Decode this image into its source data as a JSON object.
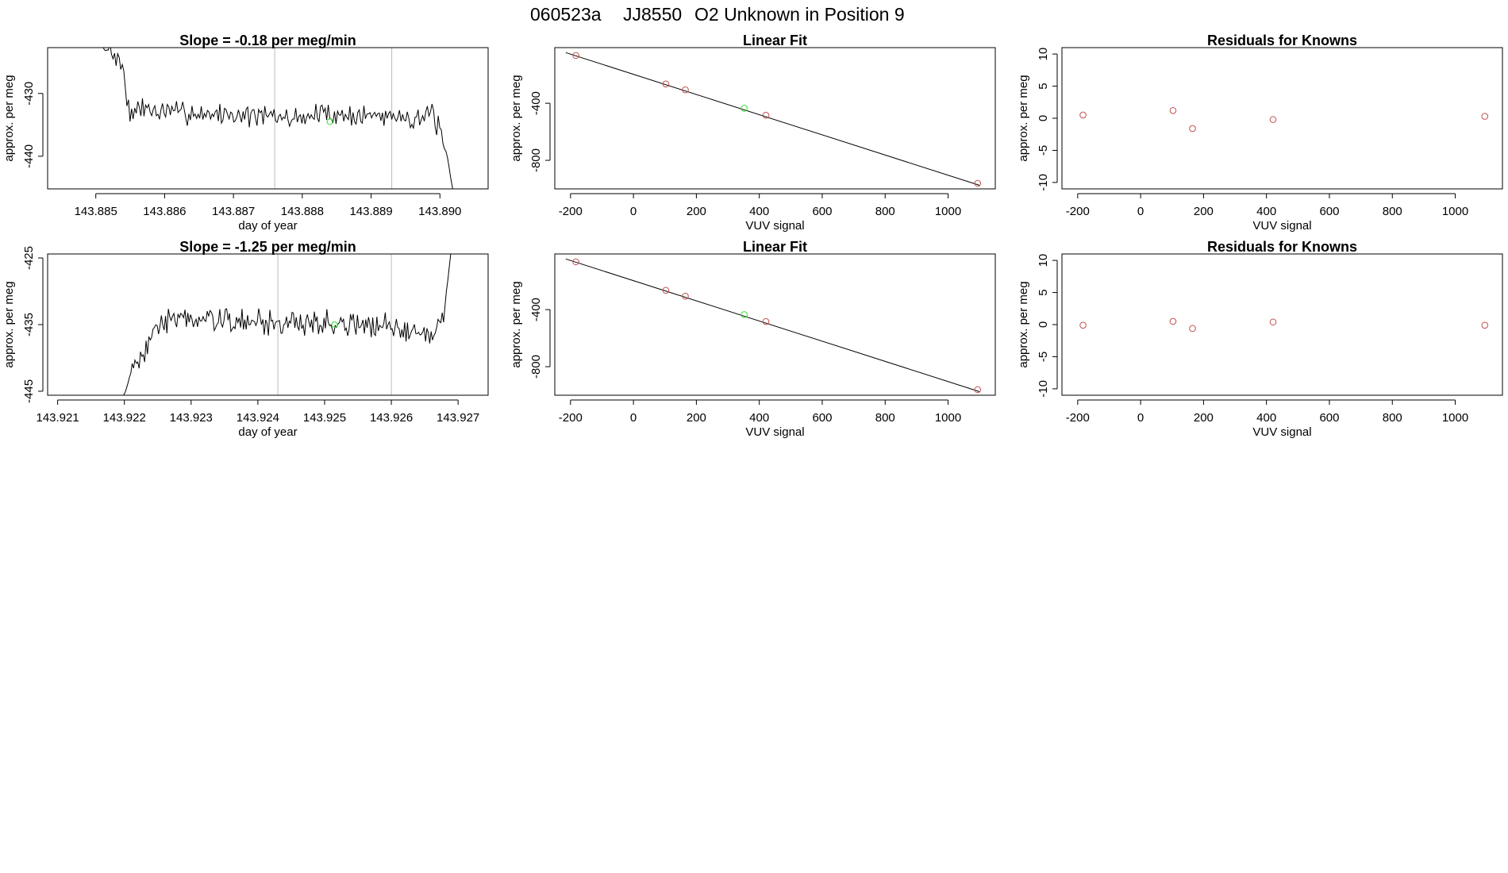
{
  "page_title": {
    "run": "060523a",
    "tank": "JJ8550",
    "description": "O2 Unknown in Position  9"
  },
  "colors": {
    "line": "#000000",
    "known_point": "#c0504d",
    "unknown_point": "#33dd33",
    "cursor_line": "#bbbbbb",
    "frame": "#000000"
  },
  "chart_data": [
    {
      "id": "ts1",
      "type": "line",
      "title": "Slope =  -0.18  per meg/min",
      "xlabel": "day of year",
      "ylabel": "approx. per meg",
      "xlim": [
        143.8843,
        143.8907
      ],
      "ylim": [
        -445.2,
        -422.7
      ],
      "x_ticks": [
        143.885,
        143.886,
        143.887,
        143.888,
        143.889,
        143.89
      ],
      "x_tick_labels": [
        "143.885",
        "143.886",
        "143.887",
        "143.888",
        "143.889",
        "143.890"
      ],
      "y_ticks": [
        -440,
        -430
      ],
      "y_tick_labels": [
        "-440",
        "-430"
      ],
      "x_start": 143.8848,
      "x_end": 143.8902,
      "vlines": [
        143.8876,
        143.8893
      ],
      "marker": {
        "x": 143.8884,
        "y": -434.5
      },
      "envelope": [
        [
          143.8848,
          -418
        ],
        [
          143.8852,
          -423
        ],
        [
          143.8854,
          -426
        ],
        [
          143.8855,
          -434
        ],
        [
          143.8857,
          -432
        ],
        [
          143.8859,
          -433
        ],
        [
          143.8863,
          -433
        ],
        [
          143.8868,
          -433.3
        ],
        [
          143.8873,
          -433.5
        ],
        [
          143.8878,
          -434
        ],
        [
          143.8883,
          -433.2
        ],
        [
          143.8888,
          -433.6
        ],
        [
          143.8893,
          -433.4
        ],
        [
          143.8896,
          -433.8
        ],
        [
          143.8899,
          -433.5
        ],
        [
          143.89,
          -436
        ],
        [
          143.8901,
          -440
        ],
        [
          143.8902,
          -446
        ]
      ],
      "noise_amplitude": 2.2,
      "noise_seed": 7
    },
    {
      "id": "fit1",
      "type": "scatter",
      "title": "Linear Fit",
      "xlabel": "VUV signal",
      "ylabel": "approx. per meg",
      "xlim": [
        -250,
        1150
      ],
      "ylim": [
        -1000,
        -10
      ],
      "x_ticks": [
        -200,
        0,
        200,
        400,
        600,
        800,
        1000
      ],
      "x_tick_labels": [
        "-200",
        "0",
        "200",
        "400",
        "600",
        "800",
        "1000"
      ],
      "y_ticks": [
        -800,
        -400
      ],
      "y_tick_labels": [
        "-800",
        "-400"
      ],
      "fit_line": [
        [
          -215,
          -45
        ],
        [
          1100,
          -975
        ]
      ],
      "knowns": [
        [
          -183,
          -65
        ],
        [
          103,
          -265
        ],
        [
          165,
          -306
        ],
        [
          421,
          -484
        ],
        [
          1094,
          -961
        ]
      ],
      "unknowns": [
        [
          352,
          -435
        ]
      ]
    },
    {
      "id": "res1",
      "type": "scatter",
      "title": "Residuals for Knowns",
      "xlabel": "VUV signal",
      "ylabel": "approx. per meg",
      "xlim": [
        -250,
        1150
      ],
      "ylim": [
        -11,
        11
      ],
      "x_ticks": [
        -200,
        0,
        200,
        400,
        600,
        800,
        1000
      ],
      "x_tick_labels": [
        "-200",
        "0",
        "200",
        "400",
        "600",
        "800",
        "1000"
      ],
      "y_ticks": [
        -10,
        -5,
        0,
        5,
        10
      ],
      "y_tick_labels": [
        "-10",
        "-5",
        "0",
        "5",
        "10"
      ],
      "knowns": [
        [
          -183,
          0.5
        ],
        [
          103,
          1.2
        ],
        [
          165,
          -1.6
        ],
        [
          421,
          -0.2
        ],
        [
          1094,
          0.3
        ]
      ]
    },
    {
      "id": "ts2",
      "type": "line",
      "title": "Slope =  -1.25  per meg/min",
      "xlabel": "day of year",
      "ylabel": "approx. per meg",
      "xlim": [
        143.92085,
        143.92745
      ],
      "ylim": [
        -445.6,
        -424.4
      ],
      "x_ticks": [
        143.921,
        143.922,
        143.923,
        143.924,
        143.925,
        143.926,
        143.927
      ],
      "x_tick_labels": [
        "143.921",
        "143.922",
        "143.923",
        "143.924",
        "143.925",
        "143.926",
        "143.927"
      ],
      "y_ticks": [
        -445,
        -435,
        -425
      ],
      "y_tick_labels": [
        "-445",
        "-435",
        "-425"
      ],
      "x_start": 143.92195,
      "x_end": 143.92695,
      "vlines": [
        143.9243,
        143.926
      ],
      "marker": {
        "x": 143.92515,
        "y": -435
      },
      "envelope": [
        [
          143.92195,
          -446.5
        ],
        [
          143.92205,
          -444
        ],
        [
          143.92215,
          -440
        ],
        [
          143.92228,
          -441
        ],
        [
          143.92238,
          -436.5
        ],
        [
          143.92255,
          -435
        ],
        [
          143.9228,
          -433.8
        ],
        [
          143.9232,
          -434.2
        ],
        [
          143.9237,
          -434.5
        ],
        [
          143.9243,
          -434.8
        ],
        [
          143.9248,
          -434.6
        ],
        [
          143.9253,
          -434.9
        ],
        [
          143.9258,
          -435.3
        ],
        [
          143.9263,
          -435.6
        ],
        [
          143.92665,
          -436
        ],
        [
          143.92678,
          -434
        ],
        [
          143.92685,
          -428
        ],
        [
          143.92695,
          -419
        ]
      ],
      "noise_amplitude": 2.3,
      "noise_seed": 19
    },
    {
      "id": "fit2",
      "type": "scatter",
      "title": "Linear Fit",
      "xlabel": "VUV signal",
      "ylabel": "approx. per meg",
      "xlim": [
        -250,
        1150
      ],
      "ylim": [
        -1000,
        -10
      ],
      "x_ticks": [
        -200,
        0,
        200,
        400,
        600,
        800,
        1000
      ],
      "x_tick_labels": [
        "-200",
        "0",
        "200",
        "400",
        "600",
        "800",
        "1000"
      ],
      "y_ticks": [
        -800,
        -400
      ],
      "y_tick_labels": [
        "-800",
        "-400"
      ],
      "fit_line": [
        [
          -215,
          -45
        ],
        [
          1100,
          -975
        ]
      ],
      "knowns": [
        [
          -183,
          -65
        ],
        [
          103,
          -265
        ],
        [
          165,
          -306
        ],
        [
          421,
          -484
        ],
        [
          1094,
          -961
        ]
      ],
      "unknowns": [
        [
          352,
          -435
        ]
      ]
    },
    {
      "id": "res2",
      "type": "scatter",
      "title": "Residuals for Knowns",
      "xlabel": "VUV signal",
      "ylabel": "approx. per meg",
      "xlim": [
        -250,
        1150
      ],
      "ylim": [
        -11,
        11
      ],
      "x_ticks": [
        -200,
        0,
        200,
        400,
        600,
        800,
        1000
      ],
      "x_tick_labels": [
        "-200",
        "0",
        "200",
        "400",
        "600",
        "800",
        "1000"
      ],
      "y_ticks": [
        -10,
        -5,
        0,
        5,
        10
      ],
      "y_tick_labels": [
        "-10",
        "-5",
        "0",
        "5",
        "10"
      ],
      "knowns": [
        [
          -183,
          -0.1
        ],
        [
          103,
          0.5
        ],
        [
          165,
          -0.6
        ],
        [
          421,
          0.4
        ],
        [
          1094,
          -0.1
        ]
      ]
    }
  ]
}
